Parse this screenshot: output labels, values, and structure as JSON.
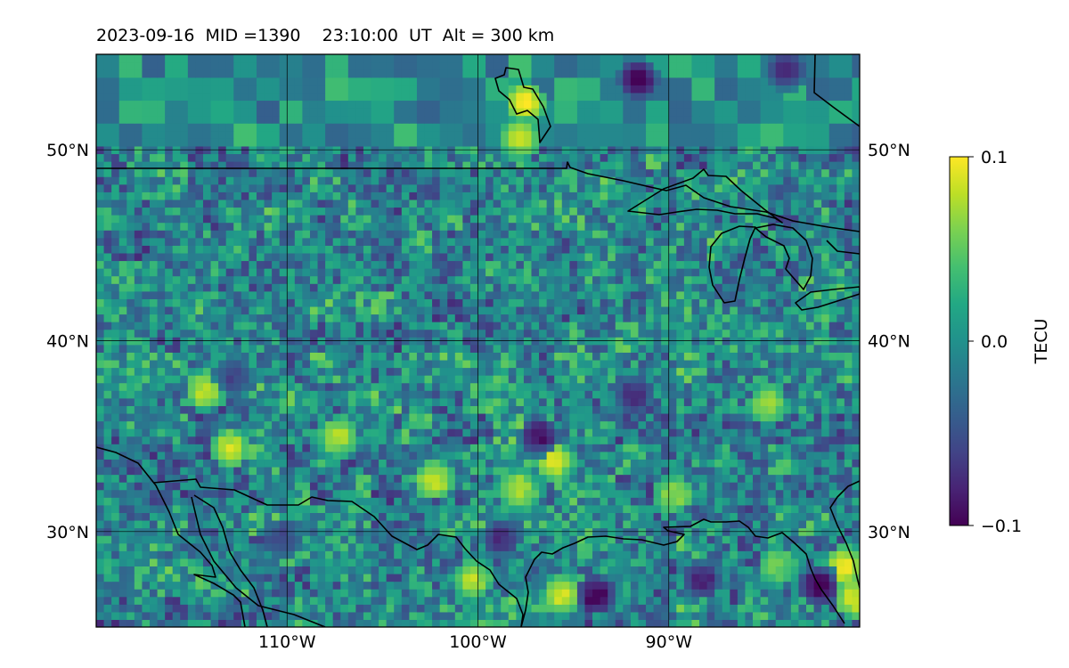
{
  "title": {
    "date": "2023-09-16",
    "mid_label": "MID =1390",
    "time_label": "23:10:00  UT",
    "alt_label": "Alt = 300 km"
  },
  "colors": {
    "viridis_min": "#440154",
    "viridis_mid": "#21918c",
    "viridis_max": "#fde725",
    "coastline": "#000000",
    "gridline": "#000000"
  },
  "chart_data": {
    "type": "heatmap",
    "title": "2023-09-16  MID =1390    23:10:00  UT  Alt = 300 km",
    "projection": "PlateCarree",
    "xlim": [
      -120,
      -80
    ],
    "ylim": [
      25,
      55
    ],
    "x_ticks": [
      -110,
      -100,
      -90
    ],
    "x_tick_labels": [
      "110°W",
      "100°W",
      "90°W"
    ],
    "y_ticks": [
      30,
      40,
      50
    ],
    "y_tick_labels": [
      "30°N",
      "40°N",
      "50°N"
    ],
    "grid": true,
    "colorbar": {
      "label": "TECU",
      "vmin": -0.1,
      "vmax": 0.1,
      "ticks": [
        -0.1,
        0.0,
        0.1
      ],
      "tick_labels": [
        "−0.1",
        "0.0",
        "0.1"
      ],
      "colormap": "viridis"
    },
    "blobs": [
      {
        "lon": -97.7,
        "lat": 52.3,
        "value": 0.1
      },
      {
        "lon": -98.0,
        "lat": 50.4,
        "value": 0.08
      },
      {
        "lon": -91.8,
        "lat": 53.5,
        "value": -0.1
      },
      {
        "lon": -84.0,
        "lat": 54.0,
        "value": -0.08
      },
      {
        "lon": -114.5,
        "lat": 37.2,
        "value": 0.09
      },
      {
        "lon": -113.2,
        "lat": 34.2,
        "value": 0.09
      },
      {
        "lon": -107.5,
        "lat": 34.8,
        "value": 0.08
      },
      {
        "lon": -102.5,
        "lat": 32.5,
        "value": 0.09
      },
      {
        "lon": -96.2,
        "lat": 33.5,
        "value": 0.09
      },
      {
        "lon": -98.0,
        "lat": 32.0,
        "value": 0.08
      },
      {
        "lon": -95.8,
        "lat": 26.5,
        "value": 0.09
      },
      {
        "lon": -100.5,
        "lat": 27.3,
        "value": 0.08
      },
      {
        "lon": -94.0,
        "lat": 26.5,
        "value": -0.1
      },
      {
        "lon": -97.0,
        "lat": 34.8,
        "value": -0.09
      },
      {
        "lon": -99.0,
        "lat": 29.5,
        "value": -0.07
      },
      {
        "lon": -88.5,
        "lat": 27.3,
        "value": -0.08
      },
      {
        "lon": -81.0,
        "lat": 28.0,
        "value": 0.1
      },
      {
        "lon": -80.5,
        "lat": 26.3,
        "value": 0.09
      },
      {
        "lon": -82.3,
        "lat": 27.0,
        "value": -0.1
      },
      {
        "lon": -84.5,
        "lat": 28.0,
        "value": 0.06
      },
      {
        "lon": -110.5,
        "lat": 29.5,
        "value": -0.06
      },
      {
        "lon": -113.0,
        "lat": 38.0,
        "value": -0.06
      },
      {
        "lon": -90.0,
        "lat": 31.8,
        "value": 0.07
      },
      {
        "lon": -85.0,
        "lat": 36.5,
        "value": 0.07
      },
      {
        "lon": -92.0,
        "lat": 37.0,
        "value": -0.07
      }
    ],
    "annotations": []
  }
}
